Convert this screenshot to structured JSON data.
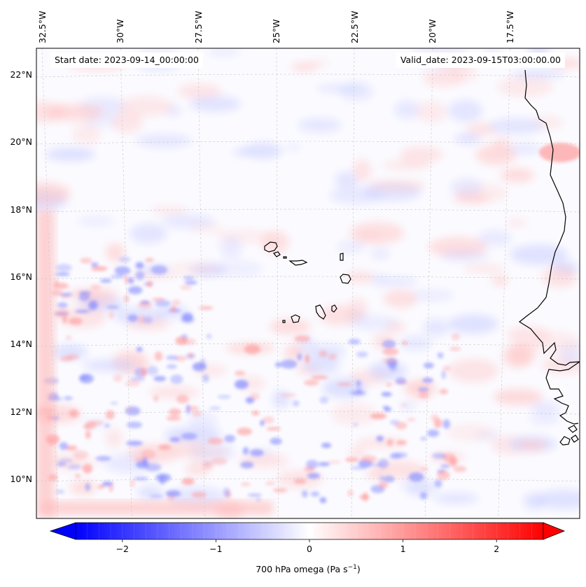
{
  "map": {
    "start_date": "Start date: 2023-09-14_00:00:00",
    "valid_date": "Valid_date: 2023-09-15T03:00:00.00",
    "lon_labels": [
      "32.5°W",
      "30°W",
      "27.5°W",
      "25°W",
      "22.5°W",
      "20°W",
      "17.5°W"
    ],
    "lat_labels": [
      "22°N",
      "20°N",
      "18°N",
      "16°N",
      "14°N",
      "12°N",
      "10°N"
    ],
    "field_range": [
      -2.5,
      2.5
    ]
  },
  "colorbar": {
    "label_prefix": "700 hPa omega (Pa s",
    "label_exp": "−1",
    "label_suffix": ")",
    "ticks": [
      "−2",
      "−1",
      "0",
      "1",
      "2"
    ],
    "tick_values": [
      -2,
      -1,
      0,
      1,
      2
    ],
    "min": -2.5,
    "max": 2.5,
    "colors": {
      "low": "#0000ff",
      "mid": "#ffffff",
      "high": "#ff0000"
    }
  },
  "colors": {
    "coast": "#000000",
    "grid": "#c8c8c8"
  }
}
